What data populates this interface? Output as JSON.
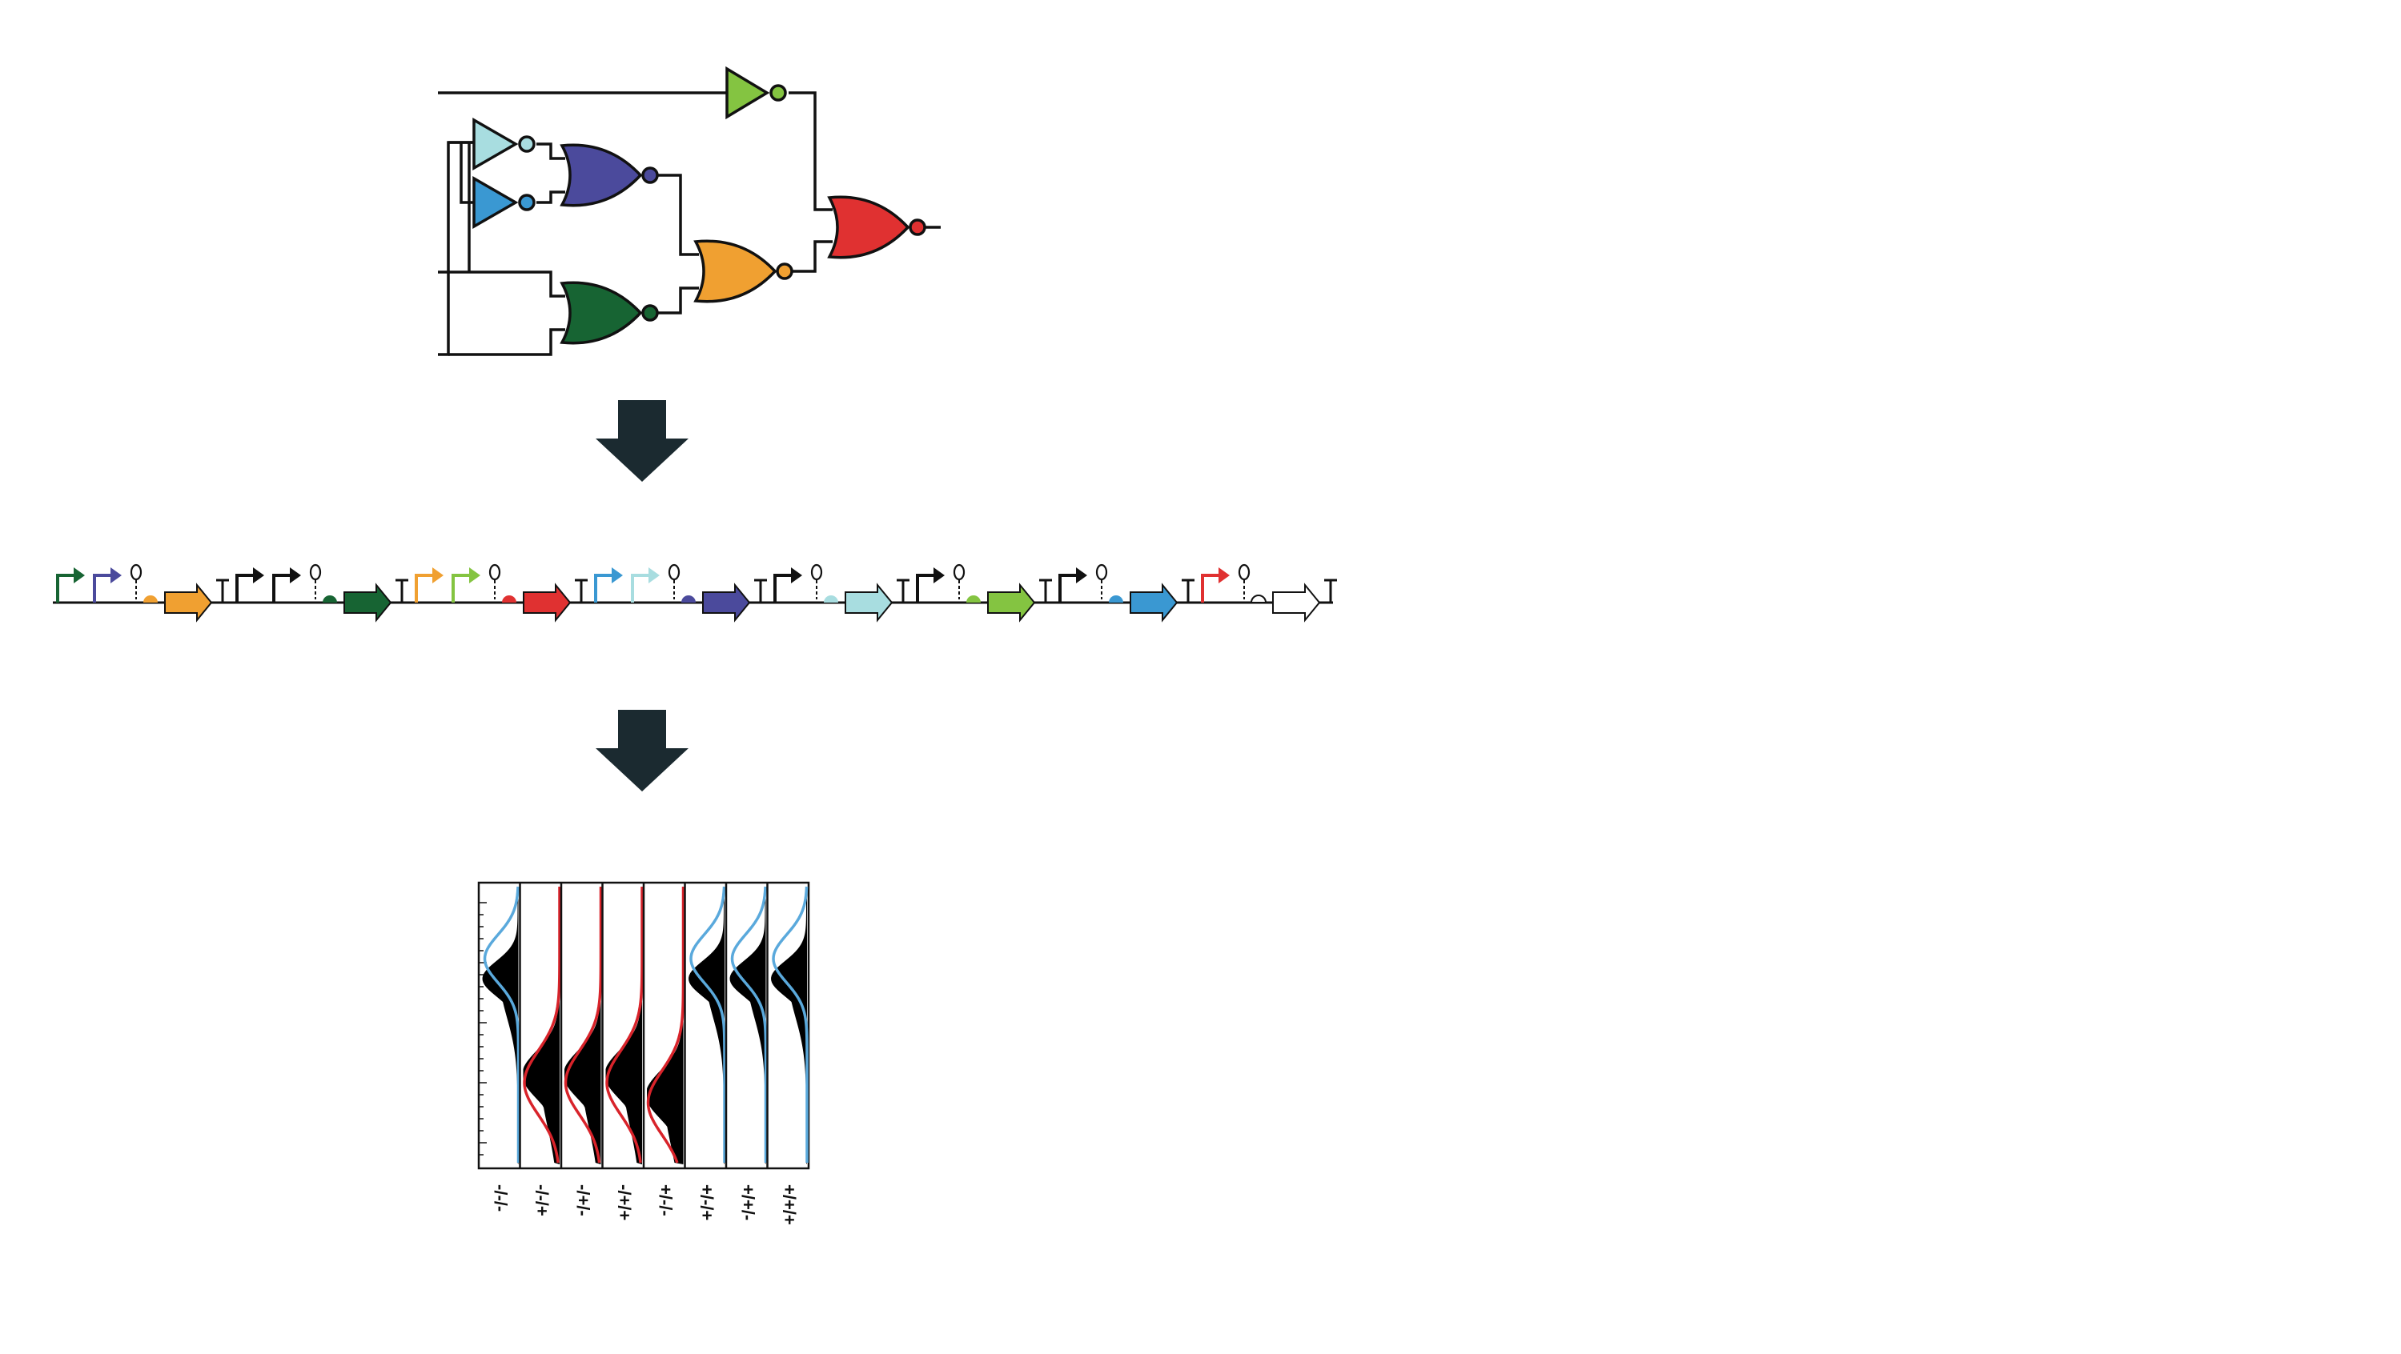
{
  "colors": {
    "wire": "#111111",
    "arrow": "#1b2a30",
    "light_cyan": "#a8dde0",
    "blue": "#3a98d2",
    "indigo": "#4b4a9c",
    "dark_green": "#176433",
    "orange": "#f0a031",
    "red": "#e03131",
    "lime": "#84c441",
    "blue_curve": "#5aa9dc",
    "red_curve": "#d8232a",
    "fill": "#000000"
  },
  "circuit": {
    "gates": [
      {
        "name": "not-gate-lime",
        "type": "NOT",
        "color": "lime"
      },
      {
        "name": "not-gate-light-cyan",
        "type": "NOT",
        "color": "light_cyan"
      },
      {
        "name": "not-gate-blue",
        "type": "NOT",
        "color": "blue"
      },
      {
        "name": "nor-gate-indigo",
        "type": "NOR",
        "color": "indigo"
      },
      {
        "name": "nor-gate-dark-green",
        "type": "NOR",
        "color": "dark_green"
      },
      {
        "name": "nor-gate-orange",
        "type": "NOR",
        "color": "orange"
      },
      {
        "name": "nor-gate-red",
        "type": "NOR",
        "color": "red"
      }
    ]
  },
  "genetic_construct": {
    "units": [
      {
        "promoters": [
          "dark_green",
          "indigo"
        ],
        "rbs": "orange",
        "cds": "orange"
      },
      {
        "promoters": [
          "black",
          "black"
        ],
        "rbs": "dark_green",
        "cds": "dark_green"
      },
      {
        "promoters": [
          "orange",
          "lime"
        ],
        "rbs": "red",
        "cds": "red"
      },
      {
        "promoters": [
          "blue",
          "light_cyan"
        ],
        "rbs": "indigo",
        "cds": "indigo"
      },
      {
        "promoters": [
          "black"
        ],
        "rbs": "light_cyan",
        "cds": "light_cyan"
      },
      {
        "promoters": [
          "black"
        ],
        "rbs": "lime",
        "cds": "lime"
      },
      {
        "promoters": [
          "black"
        ],
        "rbs": "blue",
        "cds": "blue"
      },
      {
        "promoters": [
          "red"
        ],
        "rbs": "white",
        "cds": "white"
      }
    ]
  },
  "chart_data": {
    "type": "histogram-panels",
    "panels": [
      {
        "label": "-/-/-",
        "curve": "blue",
        "state": "high"
      },
      {
        "label": "-/-/+",
        "curve": "red",
        "state": "low"
      },
      {
        "label": "-/+/-",
        "curve": "red",
        "state": "low"
      },
      {
        "label": "-/+/+",
        "curve": "red",
        "state": "low"
      },
      {
        "label": "+/-/-",
        "curve": "red",
        "state": "low"
      },
      {
        "label": "+/-/+",
        "curve": "blue",
        "state": "high"
      },
      {
        "label": "+/+/-",
        "curve": "blue",
        "state": "high"
      },
      {
        "label": "+/+/+",
        "curve": "blue",
        "state": "high"
      }
    ]
  }
}
